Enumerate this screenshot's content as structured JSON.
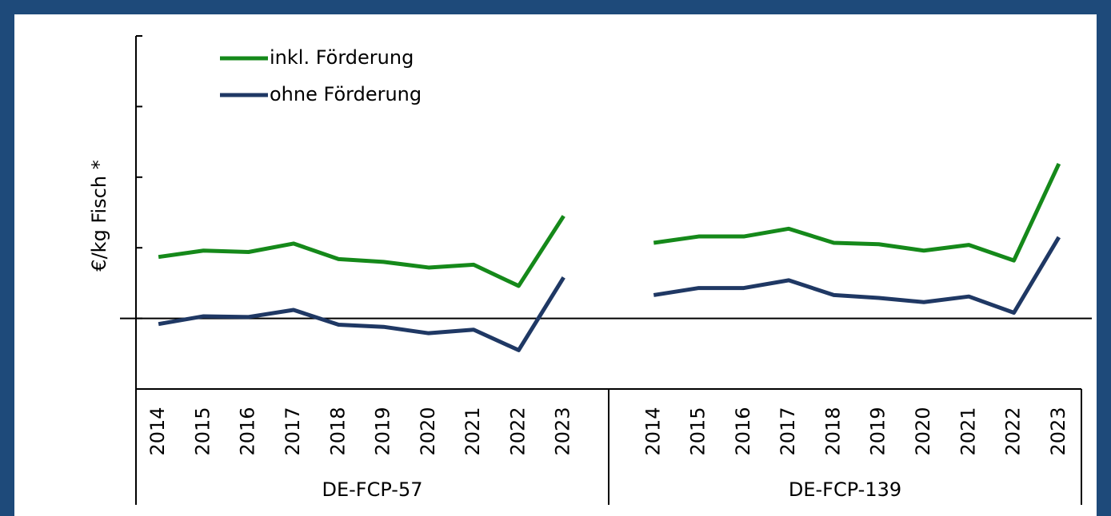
{
  "chart_data": {
    "type": "line",
    "ylabel": "€/kg Fisch  *",
    "categories": [
      "2014",
      "2015",
      "2016",
      "2017",
      "2018",
      "2019",
      "2020",
      "2021",
      "2022",
      "2023",
      null,
      "2014",
      "2015",
      "2016",
      "2017",
      "2018",
      "2019",
      "2020",
      "2021",
      "2022",
      "2023"
    ],
    "groups": [
      "DE-FCP-57",
      "DE-FCP-139"
    ],
    "series": [
      {
        "name": "inkl. Förderung",
        "color": "#15891a",
        "values": [
          0.87,
          0.96,
          0.94,
          1.06,
          0.84,
          0.8,
          0.72,
          0.76,
          0.46,
          1.45,
          null,
          1.07,
          1.16,
          1.16,
          1.27,
          1.07,
          1.05,
          0.96,
          1.04,
          0.82,
          2.19
        ]
      },
      {
        "name": "ohne Förderung",
        "color": "#1f3864",
        "values": [
          -0.08,
          0.03,
          0.02,
          0.12,
          -0.09,
          -0.12,
          -0.21,
          -0.16,
          -0.45,
          0.58,
          null,
          0.33,
          0.43,
          0.43,
          0.54,
          0.33,
          0.29,
          0.23,
          0.31,
          0.08,
          1.15
        ]
      }
    ],
    "ylim": [
      -1,
      4
    ],
    "yticks": [
      -1,
      0,
      1,
      2,
      3,
      4
    ],
    "legend": "upper left"
  }
}
